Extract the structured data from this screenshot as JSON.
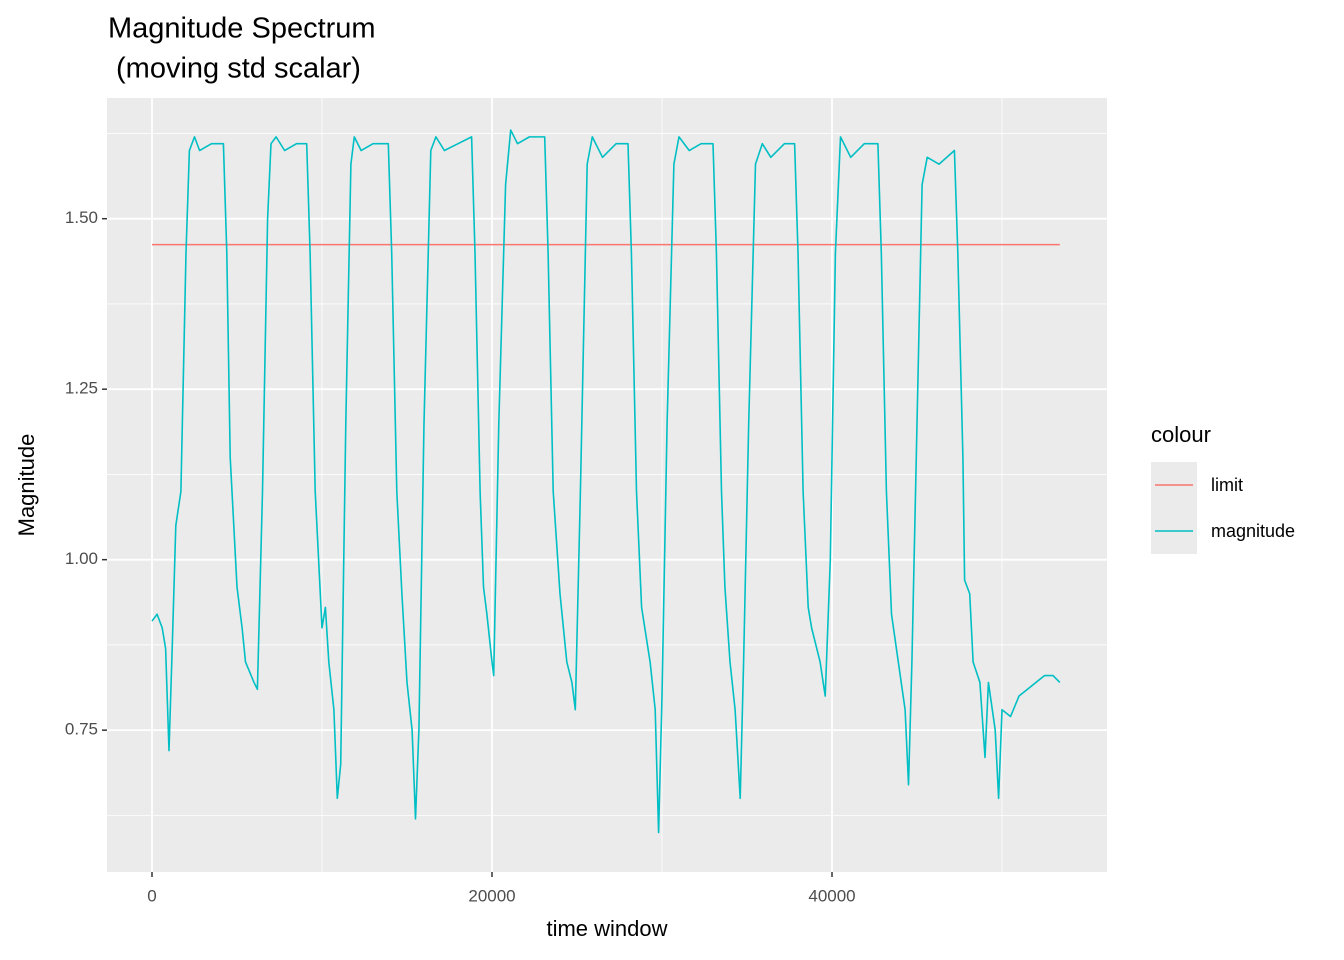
{
  "chart_data": {
    "type": "line",
    "title": [
      "Magnitude Spectrum",
      "(moving std scalar)"
    ],
    "x_label": "time window",
    "y_label": "Magnitude",
    "legend_title": "colour",
    "legend": "right",
    "grid": true,
    "panel_color": "#EBEBEB",
    "xlim": [
      -2647,
      56176
    ],
    "xticks": [
      0,
      20000,
      40000
    ],
    "ylim": [
      0.542,
      1.677
    ],
    "yticks": [
      0.75,
      {
        "value": 1,
        "label": "1.00"
      },
      1.25,
      {
        "value": 1.5,
        "label": "1.50"
      }
    ],
    "series": [
      {
        "name": "limit",
        "color": "#F8766D",
        "x": [
          0,
          53400
        ],
        "values": [
          1.462,
          1.462
        ]
      },
      {
        "name": "magnitude",
        "color": "#00BFC4",
        "x": [
          0,
          300,
          600,
          800,
          1000,
          1200,
          1400,
          1700,
          2000,
          2200,
          2500,
          2800,
          3500,
          4200,
          4400,
          4600,
          5000,
          5300,
          5500,
          6000,
          6200,
          6500,
          6800,
          7000,
          7300,
          7800,
          8500,
          9100,
          9300,
          9600,
          9900,
          10000,
          10200,
          10400,
          10700,
          10900,
          11100,
          11400,
          11700,
          11900,
          12300,
          13000,
          13900,
          14100,
          14400,
          14700,
          15000,
          15300,
          15500,
          15700,
          16000,
          16400,
          16700,
          17200,
          18000,
          18800,
          19000,
          19300,
          19500,
          19700,
          20000,
          20100,
          20400,
          20800,
          21100,
          21500,
          22200,
          23100,
          23300,
          23600,
          24000,
          24400,
          24700,
          24900,
          25200,
          25600,
          25900,
          26500,
          27300,
          28000,
          28200,
          28500,
          28800,
          29300,
          29600,
          29800,
          30000,
          30300,
          30700,
          31000,
          31600,
          32300,
          33000,
          33200,
          33500,
          33700,
          34000,
          34300,
          34600,
          34800,
          35100,
          35500,
          35900,
          36400,
          37200,
          37800,
          38000,
          38300,
          38600,
          38800,
          39300,
          39600,
          39900,
          40200,
          40500,
          41100,
          41900,
          42700,
          42900,
          43200,
          43500,
          43900,
          44300,
          44500,
          44700,
          45000,
          45300,
          45600,
          46300,
          47200,
          47400,
          47700,
          47800,
          48100,
          48300,
          48700,
          49000,
          49200,
          49600,
          49800,
          50000,
          50500,
          51000,
          51500,
          52000,
          52500,
          53000,
          53400
        ],
        "values": [
          0.91,
          0.92,
          0.9,
          0.87,
          0.72,
          0.88,
          1.05,
          1.1,
          1.45,
          1.6,
          1.62,
          1.6,
          1.61,
          1.61,
          1.45,
          1.15,
          0.96,
          0.9,
          0.85,
          0.82,
          0.81,
          1.1,
          1.5,
          1.61,
          1.62,
          1.6,
          1.61,
          1.61,
          1.45,
          1.1,
          0.95,
          0.9,
          0.93,
          0.85,
          0.78,
          0.65,
          0.7,
          1.2,
          1.58,
          1.62,
          1.6,
          1.61,
          1.61,
          1.45,
          1.1,
          0.95,
          0.82,
          0.75,
          0.62,
          0.75,
          1.2,
          1.6,
          1.62,
          1.6,
          1.61,
          1.62,
          1.45,
          1.1,
          0.96,
          0.92,
          0.85,
          0.83,
          1.2,
          1.55,
          1.63,
          1.61,
          1.62,
          1.62,
          1.45,
          1.1,
          0.95,
          0.85,
          0.82,
          0.78,
          1.1,
          1.58,
          1.62,
          1.59,
          1.61,
          1.61,
          1.45,
          1.1,
          0.93,
          0.85,
          0.78,
          0.6,
          0.8,
          1.2,
          1.58,
          1.62,
          1.6,
          1.61,
          1.61,
          1.45,
          1.1,
          0.96,
          0.85,
          0.78,
          0.65,
          0.85,
          1.2,
          1.58,
          1.61,
          1.59,
          1.61,
          1.61,
          1.45,
          1.1,
          0.93,
          0.9,
          0.85,
          0.8,
          1.0,
          1.45,
          1.62,
          1.59,
          1.61,
          1.61,
          1.45,
          1.1,
          0.92,
          0.85,
          0.78,
          0.67,
          0.85,
          1.2,
          1.55,
          1.59,
          1.58,
          1.6,
          1.45,
          1.15,
          0.97,
          0.95,
          0.85,
          0.82,
          0.71,
          0.82,
          0.75,
          0.65,
          0.78,
          0.77,
          0.8,
          0.81,
          0.82,
          0.83,
          0.83,
          0.82
        ]
      }
    ]
  }
}
